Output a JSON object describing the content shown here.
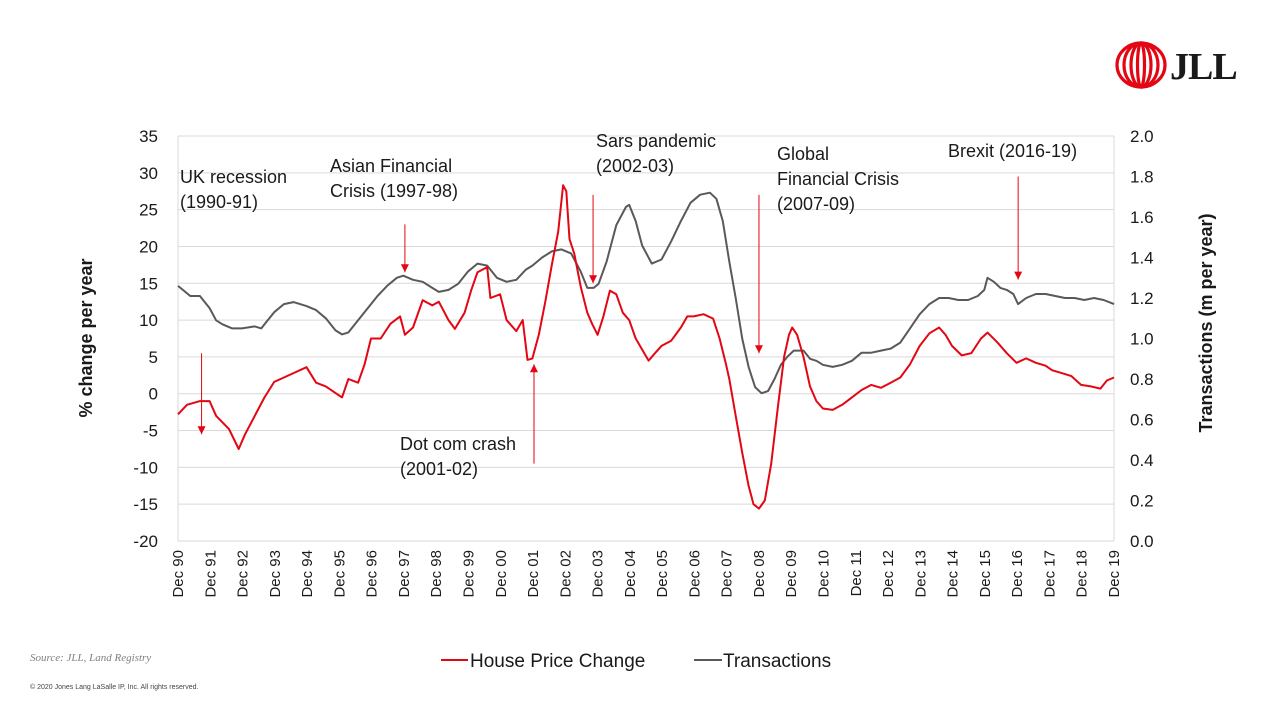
{
  "chart_data": {
    "type": "line",
    "title": "",
    "ylabel": "% change per year",
    "y2label": "Transactions (m per year)",
    "ylim": [
      -20,
      35
    ],
    "y2lim": [
      0.0,
      2.0
    ],
    "y_ticks": [
      "35",
      "30",
      "25",
      "20",
      "15",
      "10",
      "5",
      "0",
      "-5",
      "-10",
      "-15",
      "-20"
    ],
    "y2_ticks": [
      "2.0",
      "1.8",
      "1.6",
      "1.4",
      "1.2",
      "1.0",
      "0.8",
      "0.6",
      "0.4",
      "0.2",
      "0.0"
    ],
    "x_ticks": [
      "Dec 90",
      "Dec 91",
      "Dec 92",
      "Dec 93",
      "Dec 94",
      "Dec 95",
      "Dec 96",
      "Dec 97",
      "Dec 98",
      "Dec 99",
      "Dec 00",
      "Dec 01",
      "Dec 02",
      "Dec 03",
      "Dec 04",
      "Dec 05",
      "Dec 06",
      "Dec 07",
      "Dec 08",
      "Dec 09",
      "Dec 10",
      "Dec 11",
      "Dec 12",
      "Dec 13",
      "Dec 14",
      "Dec 15",
      "Dec 16",
      "Dec 17",
      "Dec 18",
      "Dec 19"
    ],
    "x_range": [
      1990.92,
      2019.92
    ],
    "series": [
      {
        "name": "House Price Change",
        "axis": "left",
        "color": "#e30613",
        "points": [
          [
            1990.92,
            -2.8
          ],
          [
            1991.2,
            -1.5
          ],
          [
            1991.6,
            -1.0
          ],
          [
            1991.9,
            -1.0
          ],
          [
            1992.1,
            -3.0
          ],
          [
            1992.5,
            -4.8
          ],
          [
            1992.8,
            -7.5
          ],
          [
            1993.0,
            -5.5
          ],
          [
            1993.3,
            -3.0
          ],
          [
            1993.6,
            -0.5
          ],
          [
            1993.9,
            1.6
          ],
          [
            1994.2,
            2.2
          ],
          [
            1994.5,
            2.8
          ],
          [
            1994.9,
            3.6
          ],
          [
            1995.2,
            1.5
          ],
          [
            1995.5,
            1.0
          ],
          [
            1995.9,
            -0.2
          ],
          [
            1996.0,
            -0.5
          ],
          [
            1996.2,
            2.0
          ],
          [
            1996.5,
            1.5
          ],
          [
            1996.7,
            4.0
          ],
          [
            1996.9,
            7.5
          ],
          [
            1997.2,
            7.5
          ],
          [
            1997.5,
            9.5
          ],
          [
            1997.8,
            10.5
          ],
          [
            1997.95,
            8.0
          ],
          [
            1998.2,
            9.0
          ],
          [
            1998.5,
            12.7
          ],
          [
            1998.8,
            12.0
          ],
          [
            1999.0,
            12.5
          ],
          [
            1999.3,
            10.0
          ],
          [
            1999.5,
            8.8
          ],
          [
            1999.8,
            11.0
          ],
          [
            2000.0,
            14.0
          ],
          [
            2000.2,
            16.5
          ],
          [
            2000.5,
            17.2
          ],
          [
            2000.6,
            13.0
          ],
          [
            2000.9,
            13.5
          ],
          [
            2001.1,
            10.0
          ],
          [
            2001.4,
            8.5
          ],
          [
            2001.6,
            10.0
          ],
          [
            2001.75,
            4.6
          ],
          [
            2001.9,
            4.8
          ],
          [
            2002.1,
            8.0
          ],
          [
            2002.3,
            12.5
          ],
          [
            2002.5,
            17.5
          ],
          [
            2002.7,
            22.0
          ],
          [
            2002.85,
            28.3
          ],
          [
            2002.95,
            27.5
          ],
          [
            2003.05,
            21.0
          ],
          [
            2003.2,
            19.0
          ],
          [
            2003.4,
            14.5
          ],
          [
            2003.6,
            11.0
          ],
          [
            2003.75,
            9.5
          ],
          [
            2003.92,
            8.0
          ],
          [
            2004.1,
            10.5
          ],
          [
            2004.3,
            14.0
          ],
          [
            2004.5,
            13.5
          ],
          [
            2004.7,
            11.0
          ],
          [
            2004.9,
            10.0
          ],
          [
            2005.1,
            7.5
          ],
          [
            2005.3,
            6.0
          ],
          [
            2005.5,
            4.5
          ],
          [
            2005.7,
            5.5
          ],
          [
            2005.9,
            6.5
          ],
          [
            2006.2,
            7.2
          ],
          [
            2006.5,
            9.0
          ],
          [
            2006.7,
            10.5
          ],
          [
            2006.9,
            10.5
          ],
          [
            2007.2,
            10.8
          ],
          [
            2007.5,
            10.2
          ],
          [
            2007.7,
            7.5
          ],
          [
            2007.9,
            4.0
          ],
          [
            2008.0,
            2.0
          ],
          [
            2008.2,
            -3.0
          ],
          [
            2008.4,
            -8.0
          ],
          [
            2008.6,
            -12.5
          ],
          [
            2008.75,
            -15.0
          ],
          [
            2008.92,
            -15.6
          ],
          [
            2009.1,
            -14.5
          ],
          [
            2009.3,
            -9.5
          ],
          [
            2009.5,
            -2.0
          ],
          [
            2009.7,
            5.0
          ],
          [
            2009.85,
            8.0
          ],
          [
            2009.95,
            9.0
          ],
          [
            2010.1,
            8.0
          ],
          [
            2010.3,
            5.0
          ],
          [
            2010.5,
            1.0
          ],
          [
            2010.7,
            -1.0
          ],
          [
            2010.9,
            -2.0
          ],
          [
            2011.2,
            -2.2
          ],
          [
            2011.5,
            -1.5
          ],
          [
            2011.8,
            -0.5
          ],
          [
            2012.1,
            0.5
          ],
          [
            2012.4,
            1.2
          ],
          [
            2012.7,
            0.8
          ],
          [
            2013.0,
            1.5
          ],
          [
            2013.3,
            2.2
          ],
          [
            2013.6,
            4.0
          ],
          [
            2013.9,
            6.5
          ],
          [
            2014.2,
            8.2
          ],
          [
            2014.5,
            9.0
          ],
          [
            2014.7,
            8.0
          ],
          [
            2014.9,
            6.5
          ],
          [
            2015.2,
            5.2
          ],
          [
            2015.5,
            5.5
          ],
          [
            2015.8,
            7.5
          ],
          [
            2016.0,
            8.3
          ],
          [
            2016.3,
            7.0
          ],
          [
            2016.6,
            5.5
          ],
          [
            2016.9,
            4.2
          ],
          [
            2017.2,
            4.8
          ],
          [
            2017.5,
            4.2
          ],
          [
            2017.8,
            3.8
          ],
          [
            2018.0,
            3.2
          ],
          [
            2018.3,
            2.8
          ],
          [
            2018.6,
            2.4
          ],
          [
            2018.9,
            1.2
          ],
          [
            2019.2,
            1.0
          ],
          [
            2019.5,
            0.7
          ],
          [
            2019.7,
            1.8
          ],
          [
            2019.92,
            2.2
          ]
        ]
      },
      {
        "name": "Transactions",
        "axis": "right",
        "color": "#595959",
        "points": [
          [
            1990.92,
            1.26
          ],
          [
            1991.3,
            1.21
          ],
          [
            1991.6,
            1.21
          ],
          [
            1991.9,
            1.15
          ],
          [
            1992.1,
            1.09
          ],
          [
            1992.3,
            1.07
          ],
          [
            1992.6,
            1.05
          ],
          [
            1992.9,
            1.05
          ],
          [
            1993.3,
            1.06
          ],
          [
            1993.5,
            1.05
          ],
          [
            1993.7,
            1.09
          ],
          [
            1993.9,
            1.13
          ],
          [
            1994.2,
            1.17
          ],
          [
            1994.5,
            1.18
          ],
          [
            1994.9,
            1.16
          ],
          [
            1995.2,
            1.14
          ],
          [
            1995.5,
            1.1
          ],
          [
            1995.8,
            1.04
          ],
          [
            1996.0,
            1.02
          ],
          [
            1996.2,
            1.03
          ],
          [
            1996.5,
            1.09
          ],
          [
            1996.8,
            1.15
          ],
          [
            1997.1,
            1.21
          ],
          [
            1997.4,
            1.26
          ],
          [
            1997.7,
            1.3
          ],
          [
            1997.9,
            1.31
          ],
          [
            1998.2,
            1.29
          ],
          [
            1998.5,
            1.28
          ],
          [
            1998.8,
            1.25
          ],
          [
            1999.0,
            1.23
          ],
          [
            1999.3,
            1.24
          ],
          [
            1999.6,
            1.27
          ],
          [
            1999.9,
            1.33
          ],
          [
            2000.2,
            1.37
          ],
          [
            2000.5,
            1.36
          ],
          [
            2000.8,
            1.3
          ],
          [
            2001.1,
            1.28
          ],
          [
            2001.4,
            1.29
          ],
          [
            2001.7,
            1.34
          ],
          [
            2001.9,
            1.36
          ],
          [
            2002.2,
            1.4
          ],
          [
            2002.5,
            1.43
          ],
          [
            2002.8,
            1.44
          ],
          [
            2003.1,
            1.42
          ],
          [
            2003.4,
            1.33
          ],
          [
            2003.6,
            1.25
          ],
          [
            2003.8,
            1.25
          ],
          [
            2003.95,
            1.27
          ],
          [
            2004.2,
            1.38
          ],
          [
            2004.5,
            1.56
          ],
          [
            2004.8,
            1.65
          ],
          [
            2004.9,
            1.66
          ],
          [
            2005.1,
            1.58
          ],
          [
            2005.3,
            1.46
          ],
          [
            2005.6,
            1.37
          ],
          [
            2005.9,
            1.39
          ],
          [
            2006.2,
            1.48
          ],
          [
            2006.5,
            1.58
          ],
          [
            2006.8,
            1.67
          ],
          [
            2007.1,
            1.71
          ],
          [
            2007.4,
            1.72
          ],
          [
            2007.6,
            1.69
          ],
          [
            2007.8,
            1.58
          ],
          [
            2008.0,
            1.38
          ],
          [
            2008.2,
            1.2
          ],
          [
            2008.4,
            1.0
          ],
          [
            2008.6,
            0.86
          ],
          [
            2008.8,
            0.76
          ],
          [
            2009.0,
            0.73
          ],
          [
            2009.2,
            0.74
          ],
          [
            2009.4,
            0.8
          ],
          [
            2009.6,
            0.87
          ],
          [
            2009.8,
            0.91
          ],
          [
            2010.0,
            0.94
          ],
          [
            2010.3,
            0.94
          ],
          [
            2010.5,
            0.9
          ],
          [
            2010.7,
            0.89
          ],
          [
            2010.9,
            0.87
          ],
          [
            2011.2,
            0.86
          ],
          [
            2011.5,
            0.87
          ],
          [
            2011.8,
            0.89
          ],
          [
            2012.1,
            0.93
          ],
          [
            2012.4,
            0.93
          ],
          [
            2012.7,
            0.94
          ],
          [
            2013.0,
            0.95
          ],
          [
            2013.3,
            0.98
          ],
          [
            2013.6,
            1.05
          ],
          [
            2013.9,
            1.12
          ],
          [
            2014.2,
            1.17
          ],
          [
            2014.5,
            1.2
          ],
          [
            2014.8,
            1.2
          ],
          [
            2015.1,
            1.19
          ],
          [
            2015.4,
            1.19
          ],
          [
            2015.7,
            1.21
          ],
          [
            2015.9,
            1.24
          ],
          [
            2016.0,
            1.3
          ],
          [
            2016.2,
            1.28
          ],
          [
            2016.4,
            1.25
          ],
          [
            2016.6,
            1.24
          ],
          [
            2016.8,
            1.22
          ],
          [
            2016.95,
            1.17
          ],
          [
            2017.2,
            1.2
          ],
          [
            2017.5,
            1.22
          ],
          [
            2017.8,
            1.22
          ],
          [
            2018.1,
            1.21
          ],
          [
            2018.4,
            1.2
          ],
          [
            2018.7,
            1.2
          ],
          [
            2019.0,
            1.19
          ],
          [
            2019.3,
            1.2
          ],
          [
            2019.6,
            1.19
          ],
          [
            2019.92,
            1.17
          ]
        ]
      }
    ],
    "annotations": [
      {
        "lines": [
          "UK recession",
          "(1990-91)"
        ],
        "arrow_x": 1991.65,
        "arrow_from": 5.5,
        "arrow_to": -5.5
      },
      {
        "lines": [
          "Asian Financial",
          "Crisis (1997-98)"
        ],
        "arrow_x": 1997.95,
        "arrow_from": 23,
        "arrow_to": 16.5
      },
      {
        "lines": [
          "Dot com crash",
          "(2001-02)"
        ],
        "arrow_x": 2001.95,
        "arrow_from": -9.5,
        "arrow_to": 4.0
      },
      {
        "lines": [
          "Sars pandemic",
          "(2002-03)"
        ],
        "arrow_x": 2003.78,
        "arrow_from": 27,
        "arrow_to": 15.0
      },
      {
        "lines": [
          "Global",
          "Financial Crisis",
          "(2007-09)"
        ],
        "arrow_x": 2008.92,
        "arrow_from": 27,
        "arrow_to": 5.5
      },
      {
        "lines": [
          "Brexit (2016-19)"
        ],
        "arrow_x": 2016.95,
        "arrow_from": 29.5,
        "arrow_to": 15.5
      }
    ],
    "legend": [
      "House Price Change",
      "Transactions"
    ],
    "legend_position": "bottom",
    "grid": "horizontal"
  },
  "source": "Source: JLL, Land Registry",
  "copyright": "© 2020 Jones Lang LaSalle IP, Inc. All rights reserved.",
  "logo": {
    "text": "JLL",
    "color": "#e30613"
  }
}
